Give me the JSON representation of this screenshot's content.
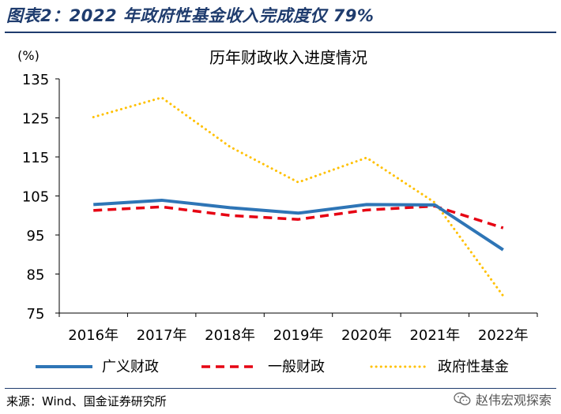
{
  "figure": {
    "title": "图表2：2022 年政府性基金收入完成度仅 79%",
    "source": "来源：Wind、国金证券研究所",
    "watermark": "赵伟宏观探索",
    "watermark_icon": "wechat-icon"
  },
  "chart_data": {
    "type": "line",
    "title": "历年财政收入进度情况",
    "unit_label": "(%)",
    "categories": [
      "2016年",
      "2017年",
      "2018年",
      "2019年",
      "2020年",
      "2021年",
      "2022年"
    ],
    "ylim": [
      75,
      135
    ],
    "yticks": [
      75,
      85,
      95,
      105,
      115,
      125,
      135
    ],
    "grid": false,
    "legend_position": "bottom",
    "series": [
      {
        "name": "广义财政",
        "values": [
          102.8,
          103.9,
          102.0,
          100.6,
          102.8,
          102.7,
          91.2
        ],
        "color": "#2e75b6",
        "style": "solid"
      },
      {
        "name": "一般财政",
        "values": [
          101.3,
          102.2,
          100.0,
          99.0,
          101.4,
          102.4,
          96.8
        ],
        "color": "#e60012",
        "style": "dashed"
      },
      {
        "name": "政府性基金",
        "values": [
          125.2,
          130.2,
          117.6,
          108.5,
          114.8,
          103.3,
          79.4
        ],
        "color": "#ffc000",
        "style": "dotted"
      }
    ]
  }
}
